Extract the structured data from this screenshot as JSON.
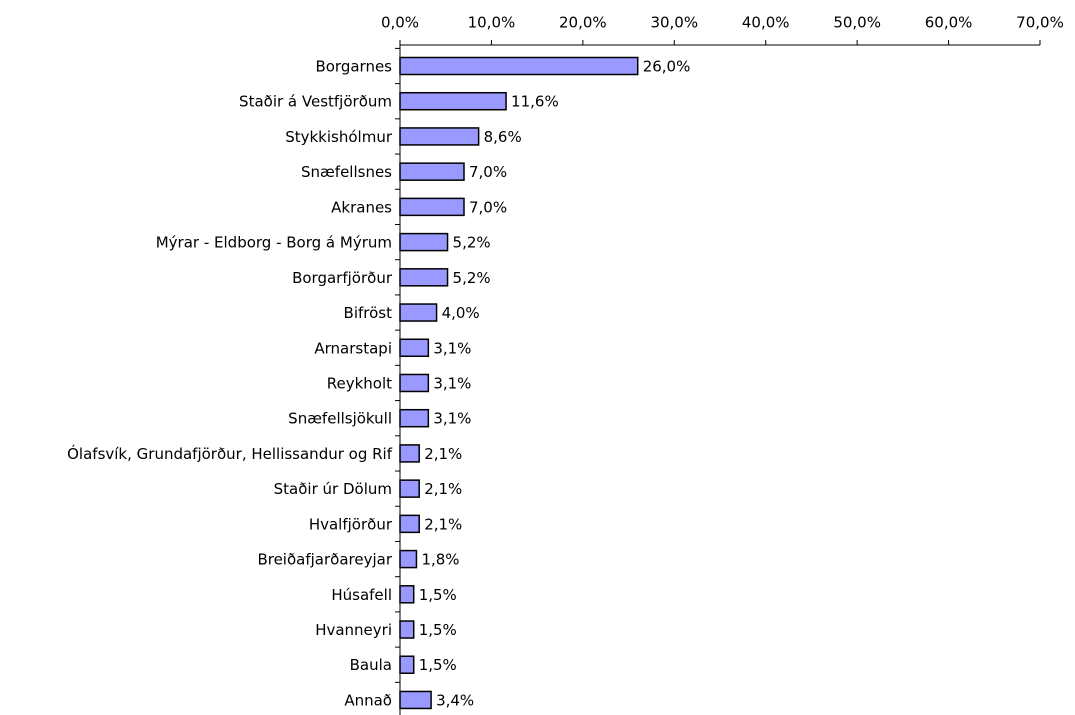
{
  "chart_data": {
    "type": "bar",
    "orientation": "horizontal",
    "categories": [
      "Borgarnes",
      "Staðir á Vestfjörðum",
      "Stykkishólmur",
      "Snæfellsnes",
      "Akranes",
      "Mýrar - Eldborg - Borg á Mýrum",
      "Borgarfjörður",
      "Bifröst",
      "Arnarstapi",
      "Reykholt",
      "Snæfellsjökull",
      "Ólafsvík, Grundafjörður, Hellissandur og Rif",
      "Staðir úr Dölum",
      "Hvalfjörður",
      "Breiðafjarðareyjar",
      "Húsafell",
      "Hvanneyri",
      "Baula",
      "Annað"
    ],
    "values": [
      26.0,
      11.6,
      8.6,
      7.0,
      7.0,
      5.2,
      5.2,
      4.0,
      3.1,
      3.1,
      3.1,
      2.1,
      2.1,
      2.1,
      1.8,
      1.5,
      1.5,
      1.5,
      3.4
    ],
    "value_labels": [
      "26,0%",
      "11,6%",
      "8,6%",
      "7,0%",
      "7,0%",
      "5,2%",
      "5,2%",
      "4,0%",
      "3,1%",
      "3,1%",
      "3,1%",
      "2,1%",
      "2,1%",
      "2,1%",
      "1,8%",
      "1,5%",
      "1,5%",
      "1,5%",
      "3,4%"
    ],
    "color": "#9999ff",
    "xlim": [
      0,
      70
    ],
    "xticks": [
      {
        "value": 0,
        "label": "0,0%"
      },
      {
        "value": 10,
        "label": "10,0%"
      },
      {
        "value": 20,
        "label": "20,0%"
      },
      {
        "value": 30,
        "label": "30,0%"
      },
      {
        "value": 40,
        "label": "40,0%"
      },
      {
        "value": 50,
        "label": "50,0%"
      },
      {
        "value": 60,
        "label": "60,0%"
      },
      {
        "value": 70,
        "label": "70,0%"
      }
    ],
    "grid": false
  }
}
